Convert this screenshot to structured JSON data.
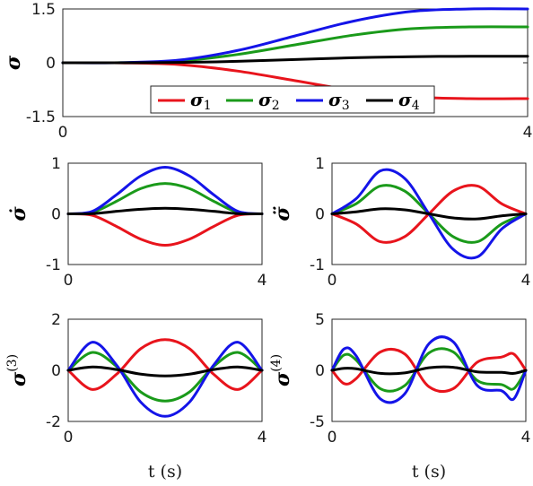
{
  "chart_data": [
    {
      "type": "line",
      "ylabel": "σ",
      "xlim": [
        0,
        4
      ],
      "ylim": [
        -1.5,
        1.5
      ],
      "xticks": [
        "0",
        "4"
      ],
      "yticks": [
        "1.5",
        "0",
        "-1.5"
      ],
      "legend": [
        "σ1",
        "σ2",
        "σ3",
        "σ4"
      ],
      "legend_position": "bottom-right",
      "x": [
        0,
        0.5,
        1,
        1.5,
        2,
        2.5,
        3,
        3.5,
        4
      ],
      "series": [
        {
          "name": "σ1",
          "color": "#e8141c",
          "values": [
            0,
            -0.003,
            -0.05,
            -0.23,
            -0.5,
            -0.77,
            -0.95,
            -1.0,
            -1.0
          ]
        },
        {
          "name": "σ2",
          "color": "#1a9a1a",
          "values": [
            0,
            0.003,
            0.05,
            0.23,
            0.5,
            0.77,
            0.95,
            1.0,
            1.0
          ]
        },
        {
          "name": "σ3",
          "color": "#1414e8",
          "values": [
            0,
            0.004,
            0.075,
            0.34,
            0.75,
            1.16,
            1.43,
            1.5,
            1.5
          ]
        },
        {
          "name": "σ4",
          "color": "#000000",
          "values": [
            0,
            0.0005,
            0.009,
            0.04,
            0.09,
            0.14,
            0.17,
            0.18,
            0.18
          ]
        }
      ]
    },
    {
      "type": "line",
      "ylabel": "σ̇",
      "xlim": [
        0,
        4
      ],
      "ylim": [
        -1,
        1
      ],
      "xticks": [
        "0",
        "4"
      ],
      "yticks": [
        "1",
        "0",
        "-1"
      ],
      "x": [
        0,
        0.5,
        1,
        1.5,
        2,
        2.5,
        3,
        3.5,
        4
      ],
      "series": [
        {
          "color": "#e8141c",
          "values": [
            0,
            -0.03,
            -0.25,
            -0.5,
            -0.62,
            -0.5,
            -0.25,
            -0.03,
            0
          ]
        },
        {
          "color": "#1a9a1a",
          "values": [
            0,
            0.03,
            0.25,
            0.5,
            0.6,
            0.5,
            0.25,
            0.03,
            0
          ]
        },
        {
          "color": "#1414e8",
          "values": [
            0,
            0.05,
            0.38,
            0.75,
            0.92,
            0.75,
            0.38,
            0.05,
            0
          ]
        },
        {
          "color": "#000000",
          "values": [
            0,
            0.005,
            0.05,
            0.09,
            0.11,
            0.09,
            0.05,
            0.005,
            0
          ]
        }
      ]
    },
    {
      "type": "line",
      "ylabel": "σ̈",
      "xlim": [
        0,
        4
      ],
      "ylim": [
        -1,
        1
      ],
      "xticks": [
        "0",
        "4"
      ],
      "yticks": [
        "1",
        "0",
        "-1"
      ],
      "x": [
        0,
        0.5,
        1,
        1.5,
        2,
        2.5,
        3,
        3.5,
        4
      ],
      "series": [
        {
          "color": "#e8141c",
          "values": [
            0,
            -0.2,
            -0.55,
            -0.45,
            0,
            0.45,
            0.55,
            0.2,
            0
          ]
        },
        {
          "color": "#1a9a1a",
          "values": [
            0,
            0.2,
            0.55,
            0.45,
            0,
            -0.45,
            -0.55,
            -0.2,
            0
          ]
        },
        {
          "color": "#1414e8",
          "values": [
            0,
            0.3,
            0.85,
            0.7,
            0,
            -0.7,
            -0.85,
            -0.3,
            0
          ]
        },
        {
          "color": "#000000",
          "values": [
            0,
            0.04,
            0.1,
            0.08,
            0,
            -0.08,
            -0.1,
            -0.04,
            0
          ]
        }
      ]
    },
    {
      "type": "line",
      "ylabel": "σ",
      "ylabel_superscript": "(3)",
      "xlabel": "t (s)",
      "xlim": [
        0,
        4
      ],
      "ylim": [
        -2,
        2
      ],
      "xticks": [
        "0",
        "4"
      ],
      "yticks": [
        "2",
        "0",
        "-2"
      ],
      "x": [
        0,
        0.5,
        1,
        1.5,
        2,
        2.5,
        3,
        3.5,
        4
      ],
      "series": [
        {
          "color": "#e8141c",
          "values": [
            0,
            -0.75,
            -0.15,
            0.85,
            1.2,
            0.85,
            -0.15,
            -0.75,
            0
          ]
        },
        {
          "color": "#1a9a1a",
          "values": [
            0,
            0.7,
            0.15,
            -0.85,
            -1.2,
            -0.85,
            0.15,
            0.7,
            0
          ]
        },
        {
          "color": "#1414e8",
          "values": [
            0,
            1.1,
            0.2,
            -1.25,
            -1.8,
            -1.25,
            0.2,
            1.1,
            0
          ]
        },
        {
          "color": "#000000",
          "values": [
            0,
            0.13,
            0.03,
            -0.15,
            -0.22,
            -0.15,
            0.03,
            0.13,
            0
          ]
        }
      ]
    },
    {
      "type": "line",
      "ylabel": "σ",
      "ylabel_superscript": "(4)",
      "xlabel": "t (s)",
      "xlim": [
        0,
        4
      ],
      "ylim": [
        -5,
        5
      ],
      "xticks": [
        "0",
        "4"
      ],
      "yticks": [
        "5",
        "0",
        "-5"
      ],
      "x": [
        0,
        0.25,
        0.5,
        1,
        1.5,
        2,
        2.5,
        3,
        3.5,
        3.75,
        4
      ],
      "series": [
        {
          "color": "#e8141c",
          "values": [
            0,
            -1.3,
            -0.8,
            1.8,
            1.6,
            -1.6,
            -1.8,
            0.8,
            1.3,
            1.6,
            0
          ]
        },
        {
          "color": "#1a9a1a",
          "values": [
            0,
            1.5,
            1.0,
            -1.8,
            -1.5,
            1.7,
            1.8,
            -1.0,
            -1.4,
            -1.8,
            0
          ]
        },
        {
          "color": "#1414e8",
          "values": [
            0,
            2.1,
            1.4,
            -2.8,
            -2.3,
            2.6,
            2.8,
            -1.5,
            -2.0,
            -2.8,
            0
          ]
        },
        {
          "color": "#000000",
          "values": [
            0,
            0.2,
            0.15,
            -0.3,
            -0.25,
            0.25,
            0.3,
            -0.15,
            -0.2,
            -0.3,
            0
          ]
        }
      ]
    }
  ]
}
